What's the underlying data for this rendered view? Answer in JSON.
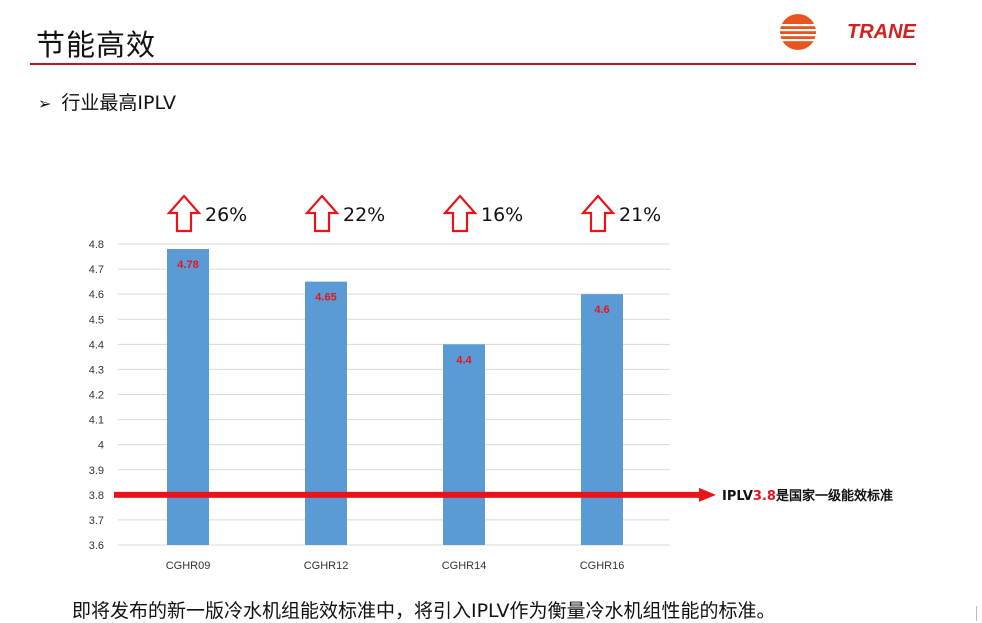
{
  "page": {
    "title": "节能高效",
    "bullet": "行业最高IPLV",
    "bullet_marker": "➢",
    "footer": "即将发布的新一版冷水机组能效标准中，将引入IPLV作为衡量冷水机组性能的标准。",
    "brand": "TRANE",
    "accent_color": "#c0141c"
  },
  "standard_line": {
    "value": 3.8,
    "label_prefix": "IPLV",
    "label_value": "3.8",
    "label_suffix": "是国家一级能效标准",
    "color": "#e8141c"
  },
  "chart_data": {
    "type": "bar",
    "categories": [
      "CGHR09",
      "CGHR12",
      "CGHR14",
      "CGHR16"
    ],
    "values": [
      4.78,
      4.65,
      4.4,
      4.6
    ],
    "data_labels": [
      "4.78",
      "4.65",
      "4.4",
      "4.6"
    ],
    "increase_labels": [
      "26%",
      "22%",
      "16%",
      "21%"
    ],
    "ylim": [
      3.6,
      4.8
    ],
    "yticks": [
      "3.6",
      "3.7",
      "3.8",
      "3.9",
      "4",
      "4.1",
      "4.2",
      "4.3",
      "4.4",
      "4.5",
      "4.6",
      "4.7",
      "4.8"
    ],
    "grid": true,
    "bar_color": "#5b9bd5",
    "label_color": "#e8141c",
    "title": "",
    "xlabel": "",
    "ylabel": ""
  }
}
